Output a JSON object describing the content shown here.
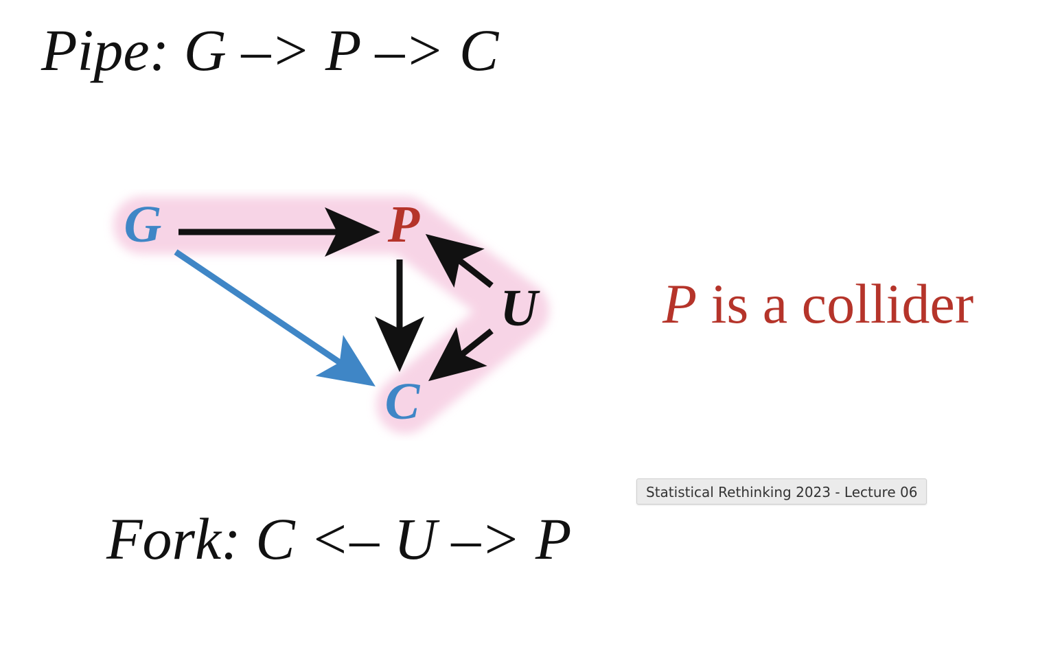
{
  "title_top": "Pipe: G –> P –> C",
  "title_bottom": "Fork: C <– U –> P",
  "statement": {
    "variable": "P",
    "rest": " is a collider"
  },
  "caption": "Statistical Rethinking 2023 - Lecture 06",
  "diagram": {
    "nodes": [
      {
        "id": "G",
        "label": "G",
        "color": "#3f86c6"
      },
      {
        "id": "P",
        "label": "P",
        "color": "#b5342a"
      },
      {
        "id": "U",
        "label": "U",
        "color": "#111111"
      },
      {
        "id": "C",
        "label": "C",
        "color": "#3f86c6"
      }
    ],
    "edges": [
      {
        "from": "G",
        "to": "P",
        "color": "#111111"
      },
      {
        "from": "G",
        "to": "C",
        "color": "#3f86c6"
      },
      {
        "from": "P",
        "to": "C",
        "color": "#111111"
      },
      {
        "from": "U",
        "to": "P",
        "color": "#111111"
      },
      {
        "from": "U",
        "to": "C",
        "color": "#111111"
      }
    ],
    "highlighted_path": [
      "G",
      "P",
      "U",
      "C"
    ],
    "highlight_color": "#f5c6de"
  },
  "colors": {
    "text": "#111111",
    "accent_red": "#b5342a",
    "accent_blue": "#3f86c6"
  }
}
